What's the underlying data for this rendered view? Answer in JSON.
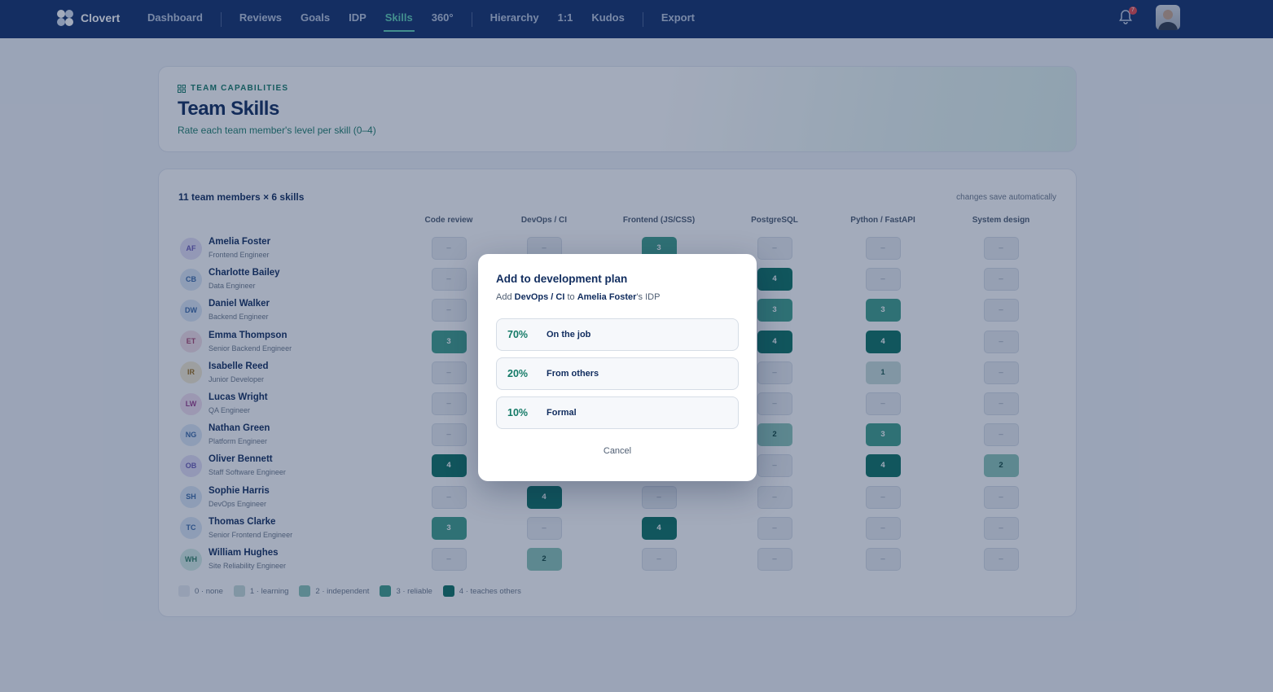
{
  "nav": {
    "brand": "Clovert",
    "groups": [
      [
        {
          "label": "Dashboard",
          "active": false
        }
      ],
      [
        {
          "label": "Reviews",
          "active": false
        },
        {
          "label": "Goals",
          "active": false
        },
        {
          "label": "IDP",
          "active": false
        },
        {
          "label": "Skills",
          "active": true
        },
        {
          "label": "360°",
          "active": false
        }
      ],
      [
        {
          "label": "Hierarchy",
          "active": false
        },
        {
          "label": "1:1",
          "active": false
        },
        {
          "label": "Kudos",
          "active": false
        }
      ],
      [
        {
          "label": "Export",
          "active": false
        }
      ]
    ],
    "notification_count": "7"
  },
  "header": {
    "eyebrow": "TEAM CAPABILITIES",
    "title": "Team Skills",
    "subtitle": "Rate each team member's level per skill (0–4)"
  },
  "matrix": {
    "summary": "11 team members × 6 skills",
    "note": "changes save automatically",
    "empty_label": "–",
    "skills": [
      "Code review",
      "DevOps / CI",
      "Frontend (JS/CSS)",
      "PostgreSQL",
      "Python / FastAPI",
      "System design"
    ],
    "rows": [
      {
        "initials": "AF",
        "name": "Amelia Foster",
        "role": "Frontend Engineer",
        "avatar_color": "#e4e0f7",
        "avatar_text": "#6b5bb8",
        "levels": [
          null,
          null,
          3,
          null,
          null,
          null
        ]
      },
      {
        "initials": "CB",
        "name": "Charlotte Bailey",
        "role": "Data Engineer",
        "avatar_color": "#dce8f7",
        "avatar_text": "#3b6aa8",
        "levels": [
          null,
          null,
          null,
          4,
          null,
          null
        ]
      },
      {
        "initials": "DW",
        "name": "Daniel Walker",
        "role": "Backend Engineer",
        "avatar_color": "#dce8f7",
        "avatar_text": "#3b6aa8",
        "levels": [
          null,
          null,
          null,
          3,
          3,
          null
        ]
      },
      {
        "initials": "ET",
        "name": "Emma Thompson",
        "role": "Senior Backend Engineer",
        "avatar_color": "#f5dfe8",
        "avatar_text": "#a8456e",
        "levels": [
          3,
          null,
          null,
          4,
          4,
          null
        ]
      },
      {
        "initials": "IR",
        "name": "Isabelle Reed",
        "role": "Junior Developer",
        "avatar_color": "#f6ecd2",
        "avatar_text": "#9a6d1c",
        "levels": [
          null,
          null,
          null,
          null,
          1,
          null
        ]
      },
      {
        "initials": "LW",
        "name": "Lucas Wright",
        "role": "QA Engineer",
        "avatar_color": "#f3dff0",
        "avatar_text": "#9a3d8c",
        "levels": [
          null,
          null,
          null,
          null,
          null,
          null
        ]
      },
      {
        "initials": "NG",
        "name": "Nathan Green",
        "role": "Platform Engineer",
        "avatar_color": "#dce8f7",
        "avatar_text": "#3b6aa8",
        "levels": [
          null,
          null,
          null,
          2,
          3,
          null
        ]
      },
      {
        "initials": "OB",
        "name": "Oliver Bennett",
        "role": "Staff Software Engineer",
        "avatar_color": "#e4e0f7",
        "avatar_text": "#6b5bb8",
        "levels": [
          4,
          null,
          null,
          null,
          4,
          2
        ]
      },
      {
        "initials": "SH",
        "name": "Sophie Harris",
        "role": "DevOps Engineer",
        "avatar_color": "#dce8f7",
        "avatar_text": "#3b6aa8",
        "levels": [
          null,
          4,
          null,
          null,
          null,
          null
        ]
      },
      {
        "initials": "TC",
        "name": "Thomas Clarke",
        "role": "Senior Frontend Engineer",
        "avatar_color": "#dce8f7",
        "avatar_text": "#3b6aa8",
        "levels": [
          3,
          null,
          4,
          null,
          null,
          null
        ]
      },
      {
        "initials": "WH",
        "name": "William Hughes",
        "role": "Site Reliability Engineer",
        "avatar_color": "#d6efe6",
        "avatar_text": "#2d7e62",
        "levels": [
          null,
          2,
          null,
          null,
          null,
          null
        ]
      }
    ],
    "legend": [
      {
        "label": "0 · none",
        "color": "#e9edf2",
        "text_color": "#8a97a8"
      },
      {
        "label": "1 · learning",
        "color": "#c6dcd9",
        "text_color": "#1d5a52"
      },
      {
        "label": "2 · independent",
        "color": "#8ac5b8",
        "text_color": "#10473f"
      },
      {
        "label": "3 · reliable",
        "color": "#3f9f8b",
        "text_color": "#ffffff"
      },
      {
        "label": "4 · teaches others",
        "color": "#0d7263",
        "text_color": "#ffffff"
      }
    ]
  },
  "modal": {
    "title": "Add to development plan",
    "text_prefix": "Add",
    "skill": "DevOps / CI",
    "text_middle": "to",
    "member": "Amelia Foster",
    "text_suffix": "'s IDP",
    "options": [
      {
        "percent": "70%",
        "label": "On the job"
      },
      {
        "percent": "20%",
        "label": "From others"
      },
      {
        "percent": "10%",
        "label": "Formal"
      }
    ],
    "cancel": "Cancel"
  }
}
